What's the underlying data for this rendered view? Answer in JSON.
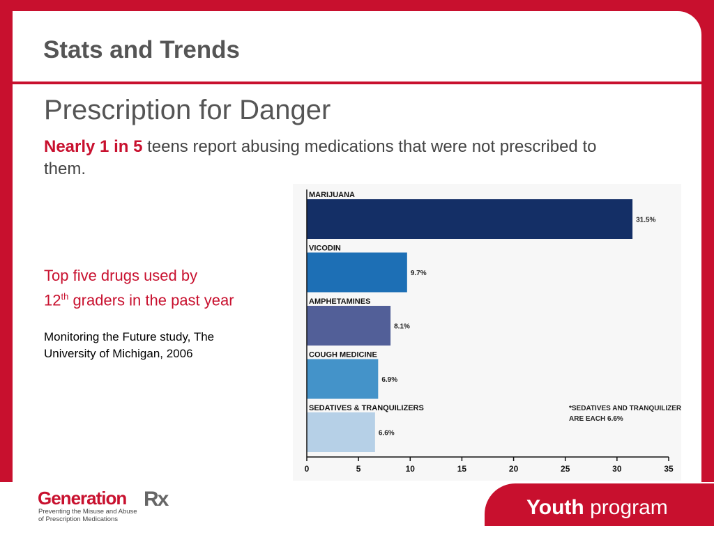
{
  "header": {
    "title": "Stats and Trends"
  },
  "main": {
    "subtitle": "Prescription for Danger",
    "intro_highlight": "Nearly 1 in 5",
    "intro_rest": " teens report abusing medications that were not prescribed to them."
  },
  "side": {
    "line1": "Top five drugs used by",
    "line2_num": "12",
    "line2_sup": "th",
    "line2_rest": " graders in the past year",
    "source": "Monitoring the Future study, The University of Michigan, 2006"
  },
  "footer": {
    "logo_main": "Generation",
    "logo_rx": "Rx",
    "logo_tagline_1": "Preventing the Misuse and Abuse",
    "logo_tagline_2": "of Prescription Medications",
    "youth_bold": "Youth",
    "youth_rest": " program"
  },
  "colors": {
    "brand_red": "#c8102e"
  },
  "chart_data": {
    "type": "bar",
    "orientation": "horizontal",
    "categories": [
      "MARIJUANA",
      "VICODIN",
      "AMPHETAMINES",
      "COUGH MEDICINE",
      "SEDATIVES & TRANQUILIZERS"
    ],
    "values": [
      31.5,
      9.7,
      8.1,
      6.9,
      6.6
    ],
    "value_labels": [
      "31.5%",
      "9.7%",
      "8.1%",
      "6.9%",
      "6.6%"
    ],
    "colors": [
      "#142f66",
      "#1d6fb5",
      "#525f98",
      "#4493c9",
      "#b6d0e7"
    ],
    "xlim": [
      0,
      35
    ],
    "xticks": [
      "0",
      "5",
      "10",
      "15",
      "20",
      "25",
      "30",
      "35"
    ],
    "note_line1": "*SEDATIVES AND TRANQUILIZERS",
    "note_line2": "ARE EACH 6.6%"
  }
}
